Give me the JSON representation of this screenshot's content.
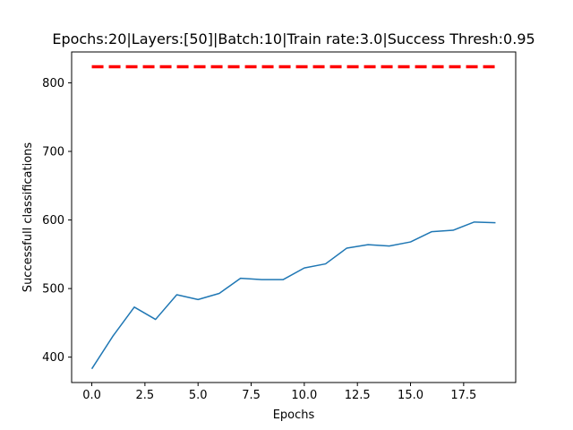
{
  "chart_data": {
    "type": "line",
    "title": "Epochs:20|Layers:[50]|Batch:10|Train rate:3.0|Success Thresh:0.95",
    "xlabel": "Epochs",
    "ylabel": "Successfull classifications",
    "xlim": [
      -0.95,
      19.95
    ],
    "ylim": [
      363,
      845
    ],
    "x_ticks": [
      0.0,
      2.5,
      5.0,
      7.5,
      10.0,
      12.5,
      15.0,
      17.5
    ],
    "x_tick_labels": [
      "0.0",
      "2.5",
      "5.0",
      "7.5",
      "10.0",
      "12.5",
      "15.0",
      "17.5"
    ],
    "y_ticks": [
      400,
      500,
      600,
      700,
      800
    ],
    "y_tick_labels": [
      "400",
      "500",
      "600",
      "700",
      "800"
    ],
    "grid": false,
    "series": [
      {
        "color": "#1f77b4",
        "style": "solid",
        "x": [
          0,
          1,
          2,
          3,
          4,
          5,
          6,
          7,
          8,
          9,
          10,
          11,
          12,
          13,
          14,
          15,
          16,
          17,
          18,
          19
        ],
        "values": [
          383,
          431,
          473,
          455,
          491,
          484,
          493,
          515,
          513,
          513,
          530,
          536,
          559,
          564,
          562,
          568,
          583,
          585,
          597,
          596
        ]
      },
      {
        "color": "#ff0000",
        "style": "dashed",
        "x": [
          0,
          19
        ],
        "values": [
          823.5,
          823.5
        ]
      }
    ]
  }
}
